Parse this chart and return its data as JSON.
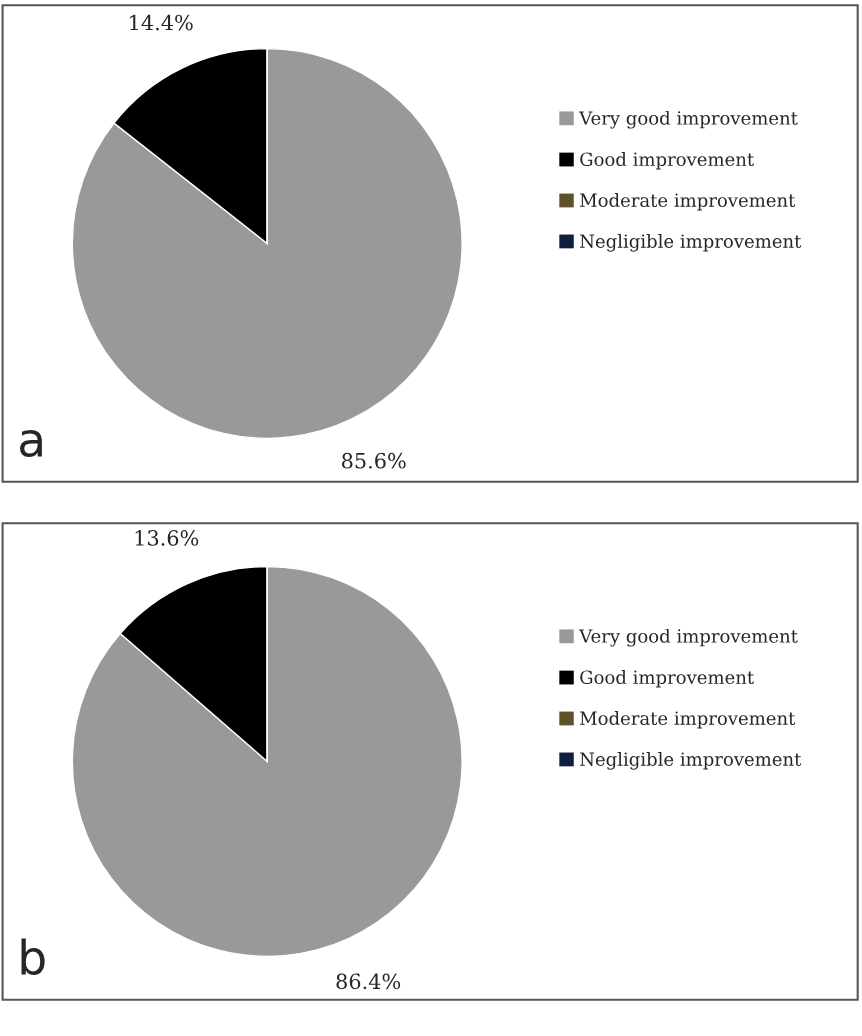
{
  "chart_data": [
    {
      "type": "pie",
      "categories": [
        "Very good improvement",
        "Good improvement",
        "Moderate improvement",
        "Negligible improvement"
      ],
      "values": [
        85.6,
        14.4,
        0,
        0
      ],
      "colors": [
        "#999999",
        "#000000",
        "#5f5128",
        "#0f1f3d"
      ],
      "value_labels": [
        "85.6%",
        "14.4%",
        null,
        null
      ],
      "legend": "right",
      "annotations": [
        "a"
      ]
    },
    {
      "type": "pie",
      "categories": [
        "Very good improvement",
        "Good improvement",
        "Moderate improvement",
        "Negligible improvement"
      ],
      "values": [
        86.4,
        13.6,
        0,
        0
      ],
      "colors": [
        "#999999",
        "#000000",
        "#5f5128",
        "#0f1f3d"
      ],
      "value_labels": [
        "86.4%",
        "13.6%",
        null,
        null
      ],
      "legend": "right",
      "annotations": [
        "b"
      ]
    }
  ]
}
